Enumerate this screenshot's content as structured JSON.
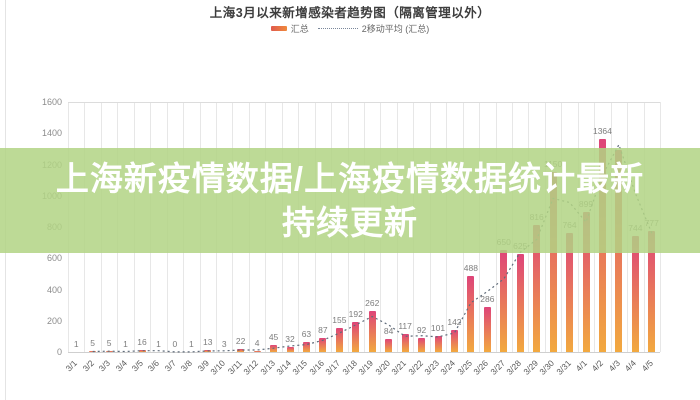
{
  "page": {
    "overlay": {
      "line1": "上海新疫情数据/上海疫情数据统计最新",
      "line2": "持续更新",
      "band_color": "#b2d484",
      "text_color": "#ffffff"
    }
  },
  "chart_data": {
    "type": "bar",
    "title": "上海3月以来新增感染者趋势图（隔离管理以外）",
    "legend": [
      {
        "label": "汇总",
        "marker": "bar-swatch",
        "color": "#e8684a"
      },
      {
        "label": "2移动平均 (汇总)",
        "marker": "dotted-line",
        "color": "#7a879a"
      }
    ],
    "categories": [
      "3/1",
      "3/2",
      "3/3",
      "3/4",
      "3/5",
      "3/6",
      "3/7",
      "3/8",
      "3/9",
      "3/10",
      "3/11",
      "3/12",
      "3/13",
      "3/14",
      "3/15",
      "3/16",
      "3/17",
      "3/18",
      "3/19",
      "3/20",
      "3/21",
      "3/22",
      "3/23",
      "3/24",
      "3/25",
      "3/26",
      "3/27",
      "3/28",
      "3/29",
      "3/30",
      "3/31",
      "4/1",
      "4/2",
      "4/3",
      "4/4",
      "4/5"
    ],
    "values": [
      1,
      5,
      5,
      1,
      16,
      1,
      0,
      1,
      13,
      3,
      22,
      4,
      45,
      32,
      63,
      87,
      155,
      192,
      262,
      84,
      117,
      92,
      101,
      142,
      488,
      286,
      650,
      625,
      816,
      1150,
      764,
      899,
      1364,
      1290,
      744,
      777
    ],
    "hidden_label_indices": [
      33
    ],
    "ylabel": "",
    "xlabel": "",
    "ylim": [
      0,
      1600
    ],
    "ytick_step": 200,
    "grid": "vertical-only",
    "legend_position": "top-center",
    "moving_average_window": 2,
    "bar_gradient_top": "#df447b",
    "bar_gradient": [
      "#de4479",
      "#f2a93f"
    ],
    "ma_line_color": "#5f6b7a"
  }
}
